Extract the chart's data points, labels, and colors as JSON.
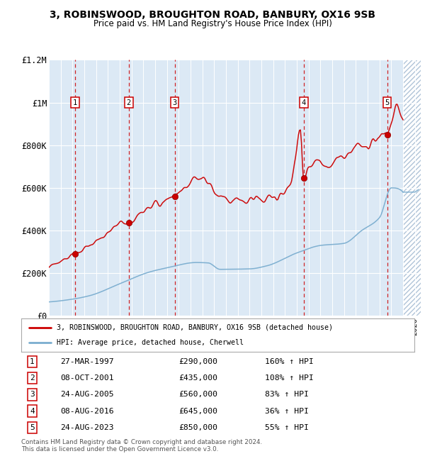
{
  "title1": "3, ROBINSWOOD, BROUGHTON ROAD, BANBURY, OX16 9SB",
  "title2": "Price paid vs. HM Land Registry's House Price Index (HPI)",
  "ylim": [
    0,
    1200000
  ],
  "xlim_start": 1995.0,
  "xlim_end": 2026.5,
  "yticks": [
    0,
    200000,
    400000,
    600000,
    800000,
    1000000,
    1200000
  ],
  "ytick_labels": [
    "£0",
    "£200K",
    "£400K",
    "£600K",
    "£800K",
    "£1M",
    "£1.2M"
  ],
  "plot_bg": "#dce9f5",
  "red_line_color": "#cc0000",
  "blue_line_color": "#7aadcf",
  "sale_color": "#cc0000",
  "sale_dates": [
    1997.23,
    2001.77,
    2005.65,
    2016.6,
    2023.65
  ],
  "sale_prices": [
    290000,
    435000,
    560000,
    645000,
    850000
  ],
  "sale_labels": [
    "1",
    "2",
    "3",
    "4",
    "5"
  ],
  "vline_color": "#cc0000",
  "legend_label_red": "3, ROBINSWOOD, BROUGHTON ROAD, BANBURY, OX16 9SB (detached house)",
  "legend_label_blue": "HPI: Average price, detached house, Cherwell",
  "table_rows": [
    [
      "1",
      "27-MAR-1997",
      "£290,000",
      "160% ↑ HPI"
    ],
    [
      "2",
      "08-OCT-2001",
      "£435,000",
      "108% ↑ HPI"
    ],
    [
      "3",
      "24-AUG-2005",
      "£560,000",
      "83% ↑ HPI"
    ],
    [
      "4",
      "08-AUG-2016",
      "£645,000",
      "36% ↑ HPI"
    ],
    [
      "5",
      "24-AUG-2023",
      "£850,000",
      "55% ↑ HPI"
    ]
  ],
  "footer": "Contains HM Land Registry data © Crown copyright and database right 2024.\nThis data is licensed under the Open Government Licence v3.0."
}
